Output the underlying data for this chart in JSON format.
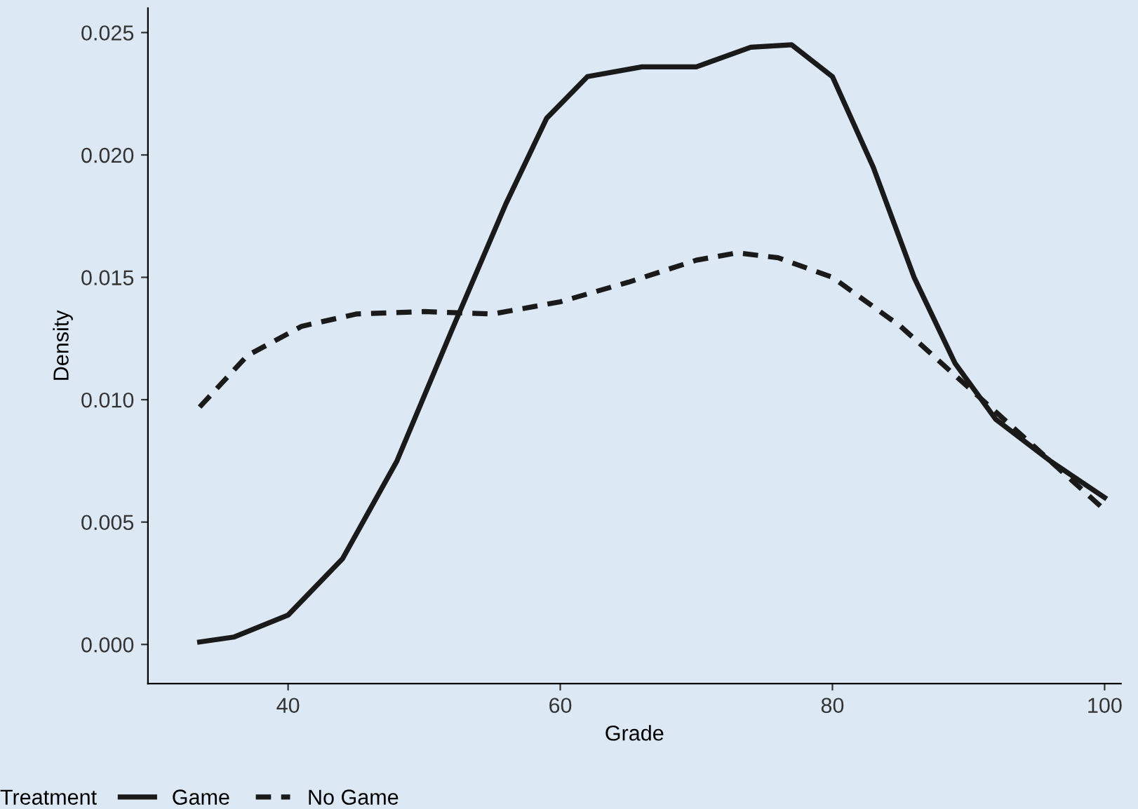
{
  "chart_data": {
    "type": "line",
    "xlabel": "Grade",
    "ylabel": "Density",
    "legend_title": "Treatment",
    "legend": "bottom",
    "grid": false,
    "marker": "none",
    "xlim": [
      29.7,
      101.2
    ],
    "ylim": [
      -0.0016,
      0.026
    ],
    "xticks": [
      40,
      60,
      80,
      100
    ],
    "yticks": [
      {
        "value": 0,
        "label": "0.000"
      },
      {
        "value": 0.005,
        "label": "0.005"
      },
      {
        "value": 0.01,
        "label": "0.010"
      },
      {
        "value": 0.015,
        "label": "0.015"
      },
      {
        "value": 0.02,
        "label": "0.020"
      },
      {
        "value": 0.025,
        "label": "0.025"
      }
    ],
    "series": [
      {
        "name": "Game",
        "color": "#1a1a1a",
        "line_style": "solid",
        "x": [
          33.5,
          36,
          40,
          44,
          48,
          52,
          56,
          59,
          62,
          66,
          70,
          74,
          77,
          80,
          83,
          86,
          89,
          92,
          96,
          100
        ],
        "values": [
          0.0001,
          0.0003,
          0.0012,
          0.0035,
          0.0075,
          0.0128,
          0.018,
          0.0215,
          0.0232,
          0.0236,
          0.0236,
          0.0244,
          0.0245,
          0.0232,
          0.0195,
          0.015,
          0.0115,
          0.0092,
          0.0075,
          0.006
        ]
      },
      {
        "name": "No Game",
        "color": "#1a1a1a",
        "line_style": "dashed",
        "x": [
          33.5,
          37,
          41,
          45,
          50,
          55,
          60,
          65,
          70,
          73,
          76,
          80,
          85,
          90,
          95,
          100
        ],
        "values": [
          0.0097,
          0.0118,
          0.013,
          0.0135,
          0.0136,
          0.0135,
          0.014,
          0.0148,
          0.0157,
          0.016,
          0.0158,
          0.015,
          0.013,
          0.0105,
          0.008,
          0.0055
        ]
      }
    ]
  }
}
